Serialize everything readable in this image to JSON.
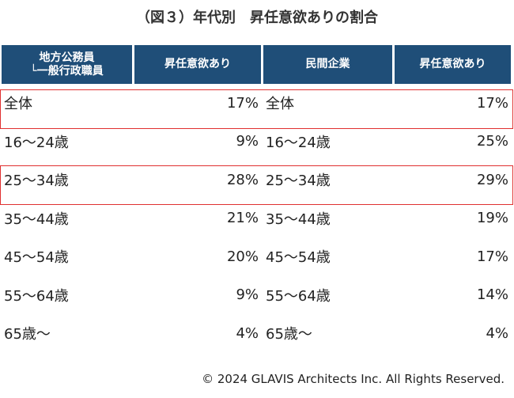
{
  "title": "（図３）年代別　昇任意欲ありの割合",
  "footer": "© 2024  GLAVIS Architects Inc. All Rights Reserved.",
  "chart_data": {
    "type": "table",
    "tables": [
      {
        "header": [
          "地方公務員\n└一般行政職員",
          "昇任意欲あり"
        ],
        "rows": [
          {
            "label": "全体",
            "value": "17%"
          },
          {
            "label": "16～24歳",
            "value": "9%"
          },
          {
            "label": "25～34歳",
            "value": "28%"
          },
          {
            "label": "35～44歳",
            "value": "21%"
          },
          {
            "label": "45～54歳",
            "value": "20%"
          },
          {
            "label": "55～64歳",
            "value": "9%"
          },
          {
            "label": "65歳～",
            "value": "4%"
          }
        ]
      },
      {
        "header": [
          "民間企業",
          "昇任意欲あり"
        ],
        "rows": [
          {
            "label": "全体",
            "value": "17%"
          },
          {
            "label": "16～24歳",
            "value": "25%"
          },
          {
            "label": "25～34歳",
            "value": "29%"
          },
          {
            "label": "35～44歳",
            "value": "19%"
          },
          {
            "label": "45～54歳",
            "value": "17%"
          },
          {
            "label": "55～64歳",
            "value": "14%"
          },
          {
            "label": "65歳～",
            "value": "4%"
          }
        ]
      }
    ],
    "highlight_color": "#e03030",
    "header_color": "#1f4e78"
  }
}
